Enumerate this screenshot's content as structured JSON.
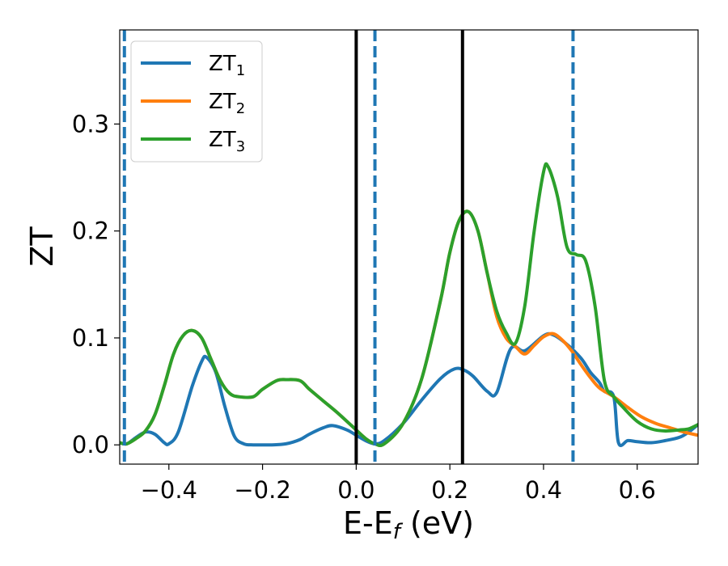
{
  "chart_data": {
    "type": "line",
    "title": "",
    "xlabel": "E-E",
    "xlabel_sub": "f",
    "xlabel_suffix": " (eV)",
    "ylabel": "ZT",
    "xlim": [
      -0.505,
      0.73
    ],
    "ylim": [
      -0.018,
      0.388
    ],
    "xticks": [
      -0.4,
      -0.2,
      0.0,
      0.2,
      0.4,
      0.6
    ],
    "xtick_labels": [
      "−0.4",
      "−0.2",
      "0.0",
      "0.2",
      "0.4",
      "0.6"
    ],
    "yticks": [
      0.0,
      0.1,
      0.2,
      0.3
    ],
    "ytick_labels": [
      "0.0",
      "0.1",
      "0.2",
      "0.3"
    ],
    "grid": false,
    "legend": "top-left",
    "series": [
      {
        "name": "ZT",
        "name_sub": "1",
        "color": "#1f77b4",
        "x": [
          -0.505,
          -0.49,
          -0.47,
          -0.45,
          -0.43,
          -0.41,
          -0.4,
          -0.38,
          -0.35,
          -0.33,
          -0.32,
          -0.3,
          -0.28,
          -0.26,
          -0.24,
          -0.22,
          -0.2,
          -0.18,
          -0.15,
          -0.12,
          -0.1,
          -0.07,
          -0.05,
          -0.02,
          0.0,
          0.02,
          0.04,
          0.06,
          0.1,
          0.14,
          0.18,
          0.21,
          0.23,
          0.25,
          0.28,
          0.3,
          0.33,
          0.36,
          0.4,
          0.42,
          0.45,
          0.48,
          0.5,
          0.52,
          0.53,
          0.55,
          0.56,
          0.58,
          0.6,
          0.63,
          0.66,
          0.69,
          0.71,
          0.73
        ],
        "y": [
          0.002,
          0.001,
          0.007,
          0.012,
          0.01,
          0.002,
          0.001,
          0.012,
          0.055,
          0.078,
          0.082,
          0.068,
          0.035,
          0.008,
          0.001,
          0.0,
          0.0,
          0.0,
          0.001,
          0.005,
          0.01,
          0.016,
          0.018,
          0.014,
          0.009,
          0.004,
          0.001,
          0.004,
          0.02,
          0.042,
          0.062,
          0.071,
          0.07,
          0.064,
          0.05,
          0.049,
          0.09,
          0.088,
          0.102,
          0.103,
          0.094,
          0.081,
          0.068,
          0.058,
          0.05,
          0.045,
          0.002,
          0.004,
          0.003,
          0.002,
          0.004,
          0.007,
          0.012,
          0.019
        ]
      },
      {
        "name": "ZT",
        "name_sub": "2",
        "color": "#ff7f0e",
        "x": [
          -0.505,
          -0.49,
          -0.47,
          -0.45,
          -0.43,
          -0.41,
          -0.39,
          -0.37,
          -0.35,
          -0.33,
          -0.31,
          -0.29,
          -0.27,
          -0.25,
          -0.22,
          -0.2,
          -0.17,
          -0.15,
          -0.12,
          -0.1,
          -0.07,
          -0.04,
          -0.01,
          0.02,
          0.04,
          0.06,
          0.1,
          0.14,
          0.18,
          0.2,
          0.22,
          0.24,
          0.26,
          0.28,
          0.3,
          0.32,
          0.34,
          0.36,
          0.38,
          0.4,
          0.42,
          0.44,
          0.46,
          0.48,
          0.5,
          0.52,
          0.55,
          0.58,
          0.61,
          0.64,
          0.67,
          0.7,
          0.73
        ],
        "y": [
          0.002,
          0.001,
          0.006,
          0.013,
          0.028,
          0.055,
          0.085,
          0.102,
          0.107,
          0.1,
          0.08,
          0.06,
          0.048,
          0.045,
          0.045,
          0.052,
          0.06,
          0.061,
          0.06,
          0.052,
          0.041,
          0.03,
          0.018,
          0.006,
          0.001,
          0.001,
          0.02,
          0.062,
          0.135,
          0.18,
          0.21,
          0.218,
          0.2,
          0.16,
          0.12,
          0.1,
          0.092,
          0.085,
          0.093,
          0.101,
          0.104,
          0.098,
          0.088,
          0.075,
          0.063,
          0.053,
          0.045,
          0.035,
          0.026,
          0.02,
          0.016,
          0.012,
          0.009
        ]
      },
      {
        "name": "ZT",
        "name_sub": "3",
        "color": "#2ca02c",
        "x": [
          -0.505,
          -0.49,
          -0.47,
          -0.45,
          -0.43,
          -0.41,
          -0.39,
          -0.37,
          -0.35,
          -0.33,
          -0.31,
          -0.29,
          -0.27,
          -0.25,
          -0.22,
          -0.2,
          -0.17,
          -0.15,
          -0.12,
          -0.1,
          -0.07,
          -0.04,
          -0.01,
          0.02,
          0.04,
          0.06,
          0.1,
          0.14,
          0.18,
          0.2,
          0.22,
          0.24,
          0.26,
          0.28,
          0.3,
          0.32,
          0.34,
          0.36,
          0.38,
          0.4,
          0.41,
          0.43,
          0.45,
          0.47,
          0.49,
          0.51,
          0.53,
          0.55,
          0.57,
          0.6,
          0.63,
          0.66,
          0.69,
          0.71,
          0.73
        ],
        "y": [
          0.002,
          0.001,
          0.006,
          0.013,
          0.028,
          0.055,
          0.085,
          0.102,
          0.107,
          0.1,
          0.08,
          0.06,
          0.048,
          0.045,
          0.045,
          0.052,
          0.06,
          0.061,
          0.06,
          0.052,
          0.041,
          0.03,
          0.018,
          0.006,
          0.001,
          0.001,
          0.02,
          0.062,
          0.135,
          0.18,
          0.21,
          0.218,
          0.2,
          0.16,
          0.125,
          0.105,
          0.095,
          0.13,
          0.2,
          0.255,
          0.26,
          0.232,
          0.185,
          0.178,
          0.172,
          0.13,
          0.06,
          0.045,
          0.035,
          0.022,
          0.015,
          0.013,
          0.014,
          0.015,
          0.019
        ]
      }
    ],
    "vlines": [
      {
        "x": -0.495,
        "style": "dashed",
        "color": "#1f77b4"
      },
      {
        "x": 0.0,
        "style": "solid",
        "color": "#000000"
      },
      {
        "x": 0.04,
        "style": "dashed",
        "color": "#1f77b4"
      },
      {
        "x": 0.227,
        "style": "solid",
        "color": "#000000"
      },
      {
        "x": 0.463,
        "style": "dashed",
        "color": "#1f77b4"
      }
    ]
  }
}
